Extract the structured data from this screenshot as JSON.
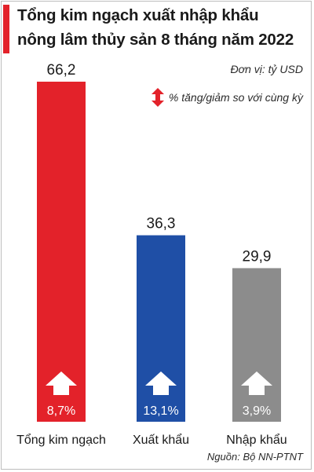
{
  "title_lines": [
    "Tổng kim ngạch xuất nhập khẩu",
    "nông lâm thủy sản 8 tháng năm 2022"
  ],
  "unit": "Đơn vị: tỷ USD",
  "legend_label": "% tăng/giảm so với cùng kỳ",
  "source": "Nguồn: Bộ NN-PTNT",
  "colors": {
    "accent": "#e3222a",
    "export": "#1f4fa6",
    "import": "#8c8c8c",
    "arrow": "#ffffff"
  },
  "chart_data": {
    "type": "bar",
    "categories": [
      "Tổng kim ngạch",
      "Xuất khẩu",
      "Nhập khẩu"
    ],
    "values": [
      66.2,
      36.3,
      29.9
    ],
    "value_labels": [
      "66,2",
      "36,3",
      "29,9"
    ],
    "change_labels": [
      "8,7%",
      "13,1%",
      "3,9%"
    ],
    "change_direction": [
      "up",
      "up",
      "up"
    ],
    "bar_colors": [
      "#e3222a",
      "#1f4fa6",
      "#8c8c8c"
    ],
    "ylim": [
      0,
      66.2
    ],
    "grid": false,
    "legend": "top-right"
  }
}
